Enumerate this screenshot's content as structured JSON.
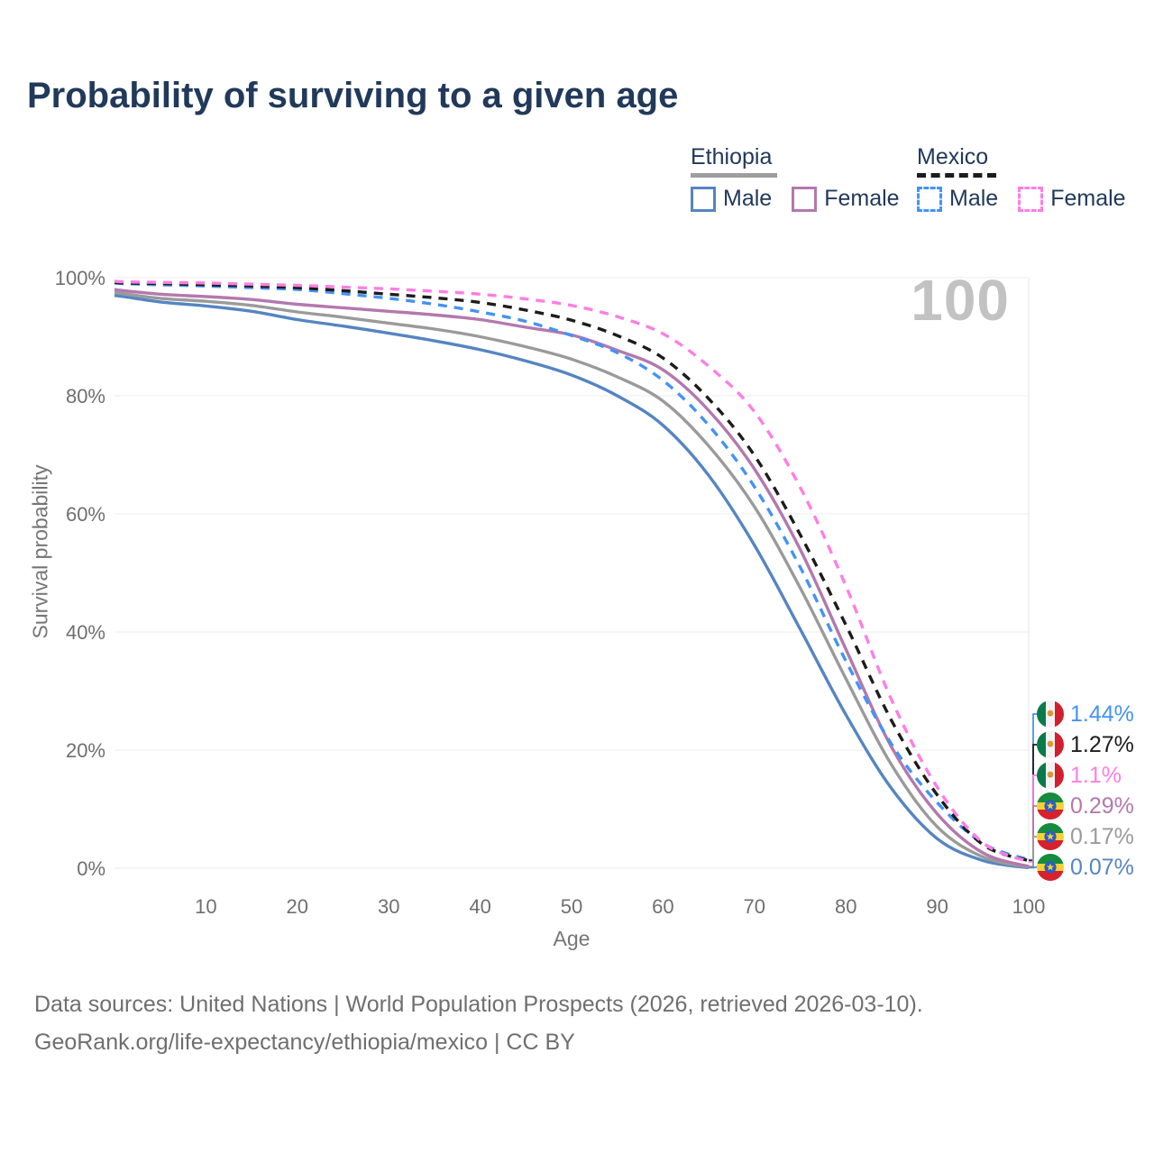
{
  "title": "Probability of surviving to a given age",
  "age_counter": "100",
  "legend": {
    "ethiopia": {
      "label": "Ethiopia",
      "male": "Male",
      "female": "Female"
    },
    "mexico": {
      "label": "Mexico",
      "male": "Male",
      "female": "Female"
    }
  },
  "colors": {
    "title_text": "#21395a",
    "axis_text": "#6f6f6f",
    "gridline": "#ececec",
    "watermark": "#c2c2c2",
    "ethiopia_male": "#5585c2",
    "ethiopia_female": "#b378ae",
    "ethiopia_both": "#9a9a9a",
    "mexico_male": "#4493f5",
    "mexico_female": "#ff7ee3",
    "mexico_both": "#1c1c1c"
  },
  "chart_data": {
    "type": "line",
    "title": "Probability of surviving to a given age",
    "xlabel": "Age",
    "ylabel": "Survival probability",
    "xlim": [
      0,
      100
    ],
    "ylim": [
      0,
      100
    ],
    "x_ticks": [
      10,
      20,
      30,
      40,
      50,
      60,
      70,
      80,
      90,
      100
    ],
    "y_ticks": [
      0,
      20,
      40,
      60,
      80,
      100
    ],
    "y_tick_suffix": "%",
    "grid": "horizontal",
    "legend_position": "top-right",
    "x": [
      0,
      1,
      5,
      10,
      15,
      20,
      25,
      30,
      35,
      40,
      45,
      50,
      55,
      60,
      65,
      70,
      75,
      80,
      85,
      90,
      95,
      100
    ],
    "series": [
      {
        "name": "Ethiopia Male",
        "slug": "ethiopia-male",
        "color": "#5585c2",
        "dash": false,
        "values": [
          97.0,
          96.8,
          95.9,
          95.2,
          94.3,
          92.9,
          91.8,
          90.6,
          89.3,
          87.8,
          85.9,
          83.5,
          80.0,
          75.0,
          66.5,
          54.7,
          40.5,
          26.0,
          13.5,
          5.0,
          1.3,
          0.07
        ]
      },
      {
        "name": "Ethiopia",
        "slug": "ethiopia-both",
        "color": "#9a9a9a",
        "dash": false,
        "values": [
          97.5,
          97.3,
          96.5,
          96.0,
          95.3,
          94.2,
          93.3,
          92.3,
          91.3,
          90.0,
          88.3,
          86.2,
          83.2,
          79.1,
          71.5,
          61.2,
          47.5,
          32.1,
          17.5,
          7.0,
          1.9,
          0.17
        ]
      },
      {
        "name": "Ethiopia Female",
        "slug": "ethiopia-female",
        "color": "#b378ae",
        "dash": false,
        "values": [
          98.0,
          97.8,
          97.2,
          96.8,
          96.3,
          95.5,
          94.9,
          94.3,
          93.7,
          92.9,
          91.6,
          90.3,
          87.7,
          84.4,
          77.5,
          67.6,
          54.0,
          37.1,
          20.5,
          9.2,
          2.6,
          0.29
        ]
      },
      {
        "name": "Mexico Male",
        "slug": "mexico-male",
        "color": "#4493f5",
        "dash": true,
        "values": [
          99.1,
          99.0,
          98.8,
          98.6,
          98.3,
          98.0,
          97.3,
          96.5,
          95.5,
          94.2,
          92.6,
          90.2,
          87.3,
          82.6,
          75.0,
          64.6,
          51.0,
          35.1,
          21.0,
          11.1,
          4.2,
          1.44
        ]
      },
      {
        "name": "Mexico",
        "slug": "mexico-both",
        "color": "#1c1c1c",
        "dash": true,
        "values": [
          99.2,
          99.1,
          99.0,
          98.8,
          98.6,
          98.3,
          97.8,
          97.2,
          96.6,
          95.8,
          94.5,
          92.8,
          90.2,
          86.4,
          79.5,
          69.9,
          56.5,
          41.2,
          25.0,
          12.4,
          4.0,
          1.27
        ]
      },
      {
        "name": "Mexico Female",
        "slug": "mexico-female",
        "color": "#ff7ee3",
        "dash": true,
        "values": [
          99.4,
          99.3,
          99.2,
          99.1,
          98.9,
          98.7,
          98.4,
          98.1,
          97.7,
          97.2,
          96.4,
          95.3,
          93.4,
          90.5,
          85.0,
          77.3,
          64.5,
          47.8,
          28.5,
          13.7,
          4.3,
          1.1
        ]
      }
    ],
    "end_labels": [
      {
        "text": "1.44%",
        "value": 1.44,
        "flag": "mexico",
        "color": "#4493f5",
        "series": "mexico-male"
      },
      {
        "text": "1.27%",
        "value": 1.27,
        "flag": "mexico",
        "color": "#1c1c1c",
        "series": "mexico-both"
      },
      {
        "text": "1.1%",
        "value": 1.1,
        "flag": "mexico",
        "color": "#ff7ee3",
        "series": "mexico-female"
      },
      {
        "text": "0.29%",
        "value": 0.29,
        "flag": "ethiopia",
        "color": "#b378ae",
        "series": "ethiopia-female"
      },
      {
        "text": "0.17%",
        "value": 0.17,
        "flag": "ethiopia",
        "color": "#9a9a9a",
        "series": "ethiopia-both"
      },
      {
        "text": "0.07%",
        "value": 0.07,
        "flag": "ethiopia",
        "color": "#5585c2",
        "series": "ethiopia-male"
      }
    ]
  },
  "footer": {
    "line1": "Data sources: United Nations | World Population Prospects (2026, retrieved 2026-03-10).",
    "line2": "GeoRank.org/life-expectancy/ethiopia/mexico | CC BY"
  }
}
